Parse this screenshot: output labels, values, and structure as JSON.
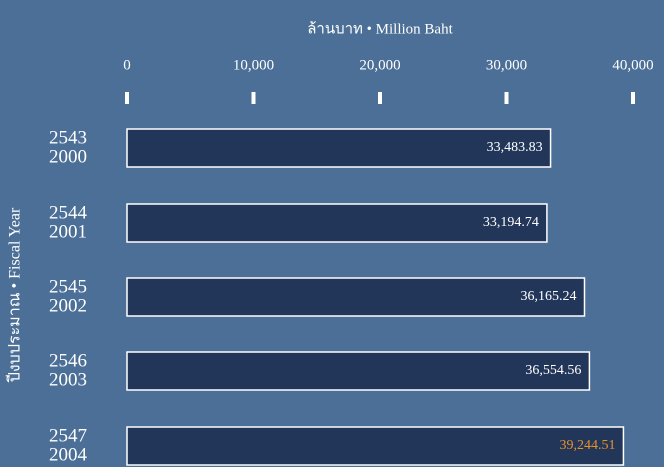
{
  "chart_data": {
    "type": "barh",
    "xlabel": "ล้านบาท • Million Baht",
    "ylabel": "ปีงบประมาณ • Fiscal Year",
    "categories": [
      [
        "2543",
        "2000"
      ],
      [
        "2544",
        "2001"
      ],
      [
        "2545",
        "2002"
      ],
      [
        "2546",
        "2003"
      ],
      [
        "2547",
        "2004"
      ]
    ],
    "values": [
      33483.83,
      33194.74,
      36165.24,
      36554.56,
      39244.51
    ],
    "value_labels": [
      "33,483.83",
      "33,194.74",
      "36,165.24",
      "36,554.56",
      "39,244.51"
    ],
    "label_colors": [
      "#ffffff",
      "#ffffff",
      "#ffffff",
      "#ffffff",
      "#e8902a"
    ],
    "color": "#22365a",
    "xlim": [
      0,
      40000
    ],
    "xticks": [
      0,
      {
        "value": 10000,
        "label": "10,000"
      },
      {
        "value": 20000,
        "label": "20,000"
      },
      {
        "value": 30000,
        "label": "30,000"
      },
      {
        "value": 40000,
        "label": "40,000"
      }
    ]
  }
}
